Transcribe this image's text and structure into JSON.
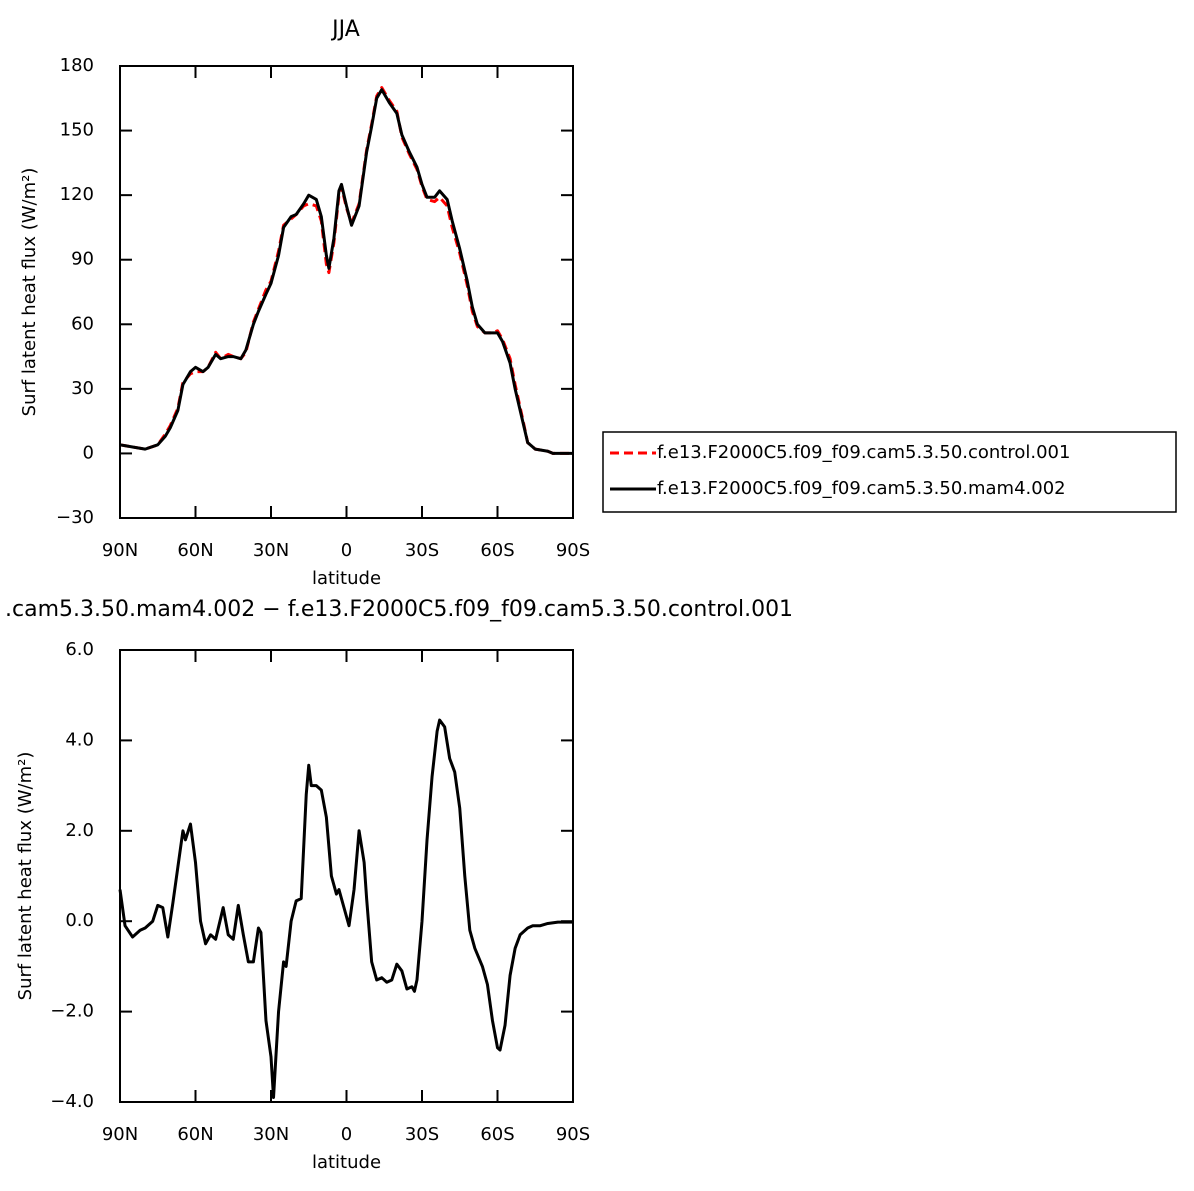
{
  "chart_data": [
    {
      "type": "line",
      "title": "JJA",
      "xlabel": "latitude",
      "ylabel": "Surf latent heat flux (W/m²)",
      "xlim": [
        90,
        -90
      ],
      "xticks": [
        {
          "value": 90,
          "label": "90N"
        },
        {
          "value": 60,
          "label": "60N"
        },
        {
          "value": 30,
          "label": "30N"
        },
        0,
        {
          "value": -30,
          "label": "30S"
        },
        {
          "value": -60,
          "label": "60S"
        },
        {
          "value": -90,
          "label": "90S"
        }
      ],
      "ylim": [
        -30,
        180
      ],
      "yticks": [
        {
          "value": -30,
          "label": "−30"
        },
        0,
        30,
        60,
        90,
        120,
        150,
        180
      ],
      "legend": "outside-right",
      "x": [
        90,
        85,
        80,
        75,
        72,
        70,
        67,
        65,
        62,
        60,
        57,
        55,
        52,
        50,
        47,
        45,
        42,
        40,
        37,
        35,
        32,
        30,
        27,
        25,
        22,
        20,
        17,
        15,
        12,
        10,
        8,
        7,
        5,
        3,
        2,
        0,
        -2,
        -5,
        -8,
        -10,
        -12,
        -14,
        -17,
        -20,
        -22,
        -25,
        -28,
        -30,
        -32,
        -35,
        -37,
        -40,
        -42,
        -45,
        -48,
        -50,
        -52,
        -55,
        -58,
        -60,
        -62,
        -65,
        -67,
        -70,
        -72,
        -75,
        -80,
        -82,
        -85,
        -90
      ],
      "series": [
        {
          "name": "f.e13.F2000C5.f09_f09.cam5.3.50.control.001",
          "color": "#ff0000",
          "line_style": "dashed",
          "values": [
            4,
            3,
            2,
            4,
            9,
            13,
            21,
            33,
            37,
            38,
            38,
            40,
            47,
            44,
            46,
            45,
            44,
            47,
            61,
            67,
            76,
            80,
            94,
            106,
            109,
            111,
            115,
            116,
            115,
            108,
            88,
            84,
            98,
            120,
            124,
            114,
            107,
            116,
            141,
            153,
            166,
            170,
            164,
            159,
            147,
            139,
            132,
            124,
            118,
            117,
            119,
            115,
            105,
            93,
            78,
            66,
            59,
            56,
            56,
            57,
            53,
            44,
            32,
            16,
            5,
            2,
            1,
            0,
            0,
            0
          ]
        },
        {
          "name": "f.e13.F2000C5.f09_f09.cam5.3.50.mam4.002",
          "color": "#000000",
          "line_style": "solid",
          "values": [
            4,
            3,
            2,
            4,
            8,
            12,
            20,
            32,
            38,
            40,
            38,
            40,
            46,
            44,
            45,
            45,
            44,
            48,
            60,
            66,
            74,
            79,
            92,
            105,
            110,
            111,
            116,
            120,
            118,
            110,
            92,
            86,
            100,
            122,
            125,
            115,
            106,
            115,
            140,
            152,
            165,
            169,
            163,
            158,
            148,
            140,
            133,
            125,
            119,
            119,
            122,
            118,
            108,
            95,
            80,
            68,
            60,
            56,
            56,
            56,
            52,
            42,
            30,
            15,
            5,
            2,
            1,
            0,
            0,
            0
          ]
        }
      ]
    },
    {
      "type": "line",
      "title": ".cam5.3.50.mam4.002 − f.e13.F2000C5.f09_f09.cam5.3.50.control.001",
      "xlabel": "latitude",
      "ylabel": "Surf latent heat flux (W/m²)",
      "xlim": [
        90,
        -90
      ],
      "xticks": [
        {
          "value": 90,
          "label": "90N"
        },
        {
          "value": 60,
          "label": "60N"
        },
        {
          "value": 30,
          "label": "30N"
        },
        0,
        {
          "value": -30,
          "label": "30S"
        },
        {
          "value": -60,
          "label": "60S"
        },
        {
          "value": -90,
          "label": "90S"
        }
      ],
      "ylim": [
        -4,
        6
      ],
      "yticks": [
        {
          "value": -4,
          "label": "−4.0"
        },
        {
          "value": -2,
          "label": "−2.0"
        },
        {
          "value": 0,
          "label": "0.0"
        },
        {
          "value": 2,
          "label": "2.0"
        },
        {
          "value": 4,
          "label": "4.0"
        },
        {
          "value": 6,
          "label": "6.0"
        }
      ],
      "x": [
        90,
        88,
        85,
        82,
        80,
        77,
        75,
        73,
        71,
        69,
        67,
        65,
        64,
        62,
        60,
        58,
        56,
        54,
        52,
        49,
        47,
        45,
        43,
        41,
        39,
        37,
        35,
        34,
        32,
        30,
        29,
        27,
        25,
        24,
        22,
        20,
        18,
        16,
        15,
        14,
        12,
        10,
        8,
        6,
        4,
        3,
        1,
        -1,
        -3,
        -5,
        -7,
        -8,
        -10,
        -12,
        -14,
        -16,
        -18,
        -20,
        -22,
        -24,
        -26,
        -27,
        -28,
        -30,
        -32,
        -34,
        -36,
        -37,
        -39,
        -41,
        -43,
        -45,
        -47,
        -49,
        -51,
        -54,
        -56,
        -58,
        -60,
        -61,
        -63,
        -65,
        -67,
        -69,
        -72,
        -74,
        -77,
        -80,
        -84,
        -90
      ],
      "series": [
        {
          "color": "#000000",
          "line_style": "solid",
          "values": [
            0.7,
            -0.1,
            -0.35,
            -0.2,
            -0.15,
            0.0,
            0.35,
            0.3,
            -0.35,
            0.4,
            1.2,
            2.0,
            1.8,
            2.15,
            1.3,
            0.0,
            -0.5,
            -0.3,
            -0.4,
            0.3,
            -0.3,
            -0.4,
            0.35,
            -0.3,
            -0.9,
            -0.9,
            -0.15,
            -0.25,
            -2.2,
            -3.0,
            -3.9,
            -2.0,
            -0.9,
            -1.0,
            0.0,
            0.45,
            0.5,
            2.8,
            3.45,
            3.0,
            3.0,
            2.9,
            2.3,
            1.0,
            0.6,
            0.7,
            0.3,
            -0.1,
            0.7,
            2.0,
            1.3,
            0.5,
            -0.9,
            -1.3,
            -1.25,
            -1.35,
            -1.3,
            -0.95,
            -1.1,
            -1.5,
            -1.45,
            -1.55,
            -1.3,
            0.0,
            1.8,
            3.2,
            4.2,
            4.45,
            4.3,
            3.6,
            3.3,
            2.5,
            1.0,
            -0.2,
            -0.6,
            -1.0,
            -1.4,
            -2.2,
            -2.8,
            -2.85,
            -2.3,
            -1.2,
            -0.6,
            -0.3,
            -0.15,
            -0.1,
            -0.1,
            -0.05,
            -0.02,
            -0.02
          ]
        }
      ]
    }
  ]
}
